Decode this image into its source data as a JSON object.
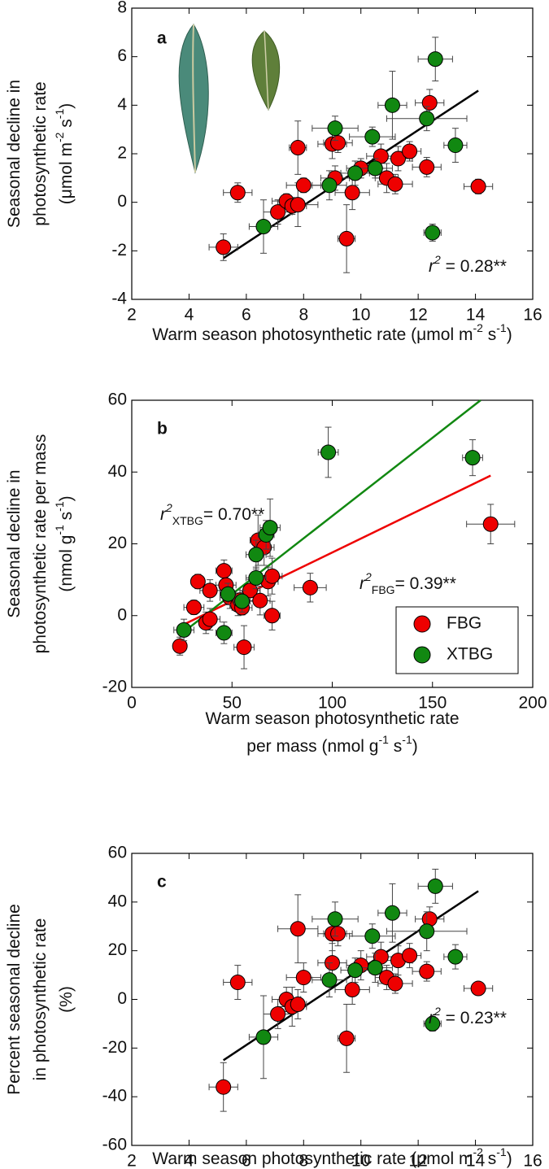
{
  "chart_data": [
    {
      "type": "scatter",
      "panel_label": "a",
      "x_label": [
        [
          {
            "text": "Warm season photosynthetic rate ("
          },
          {
            "text": "μ"
          },
          {
            "text": "mol m"
          },
          {
            "text": "-2",
            "sup": true
          },
          {
            "text": " s"
          },
          {
            "text": "-1",
            "sup": true
          },
          {
            "text": ")"
          }
        ]
      ],
      "y_label": [
        [
          {
            "text": "Seasonal decline in"
          }
        ],
        [
          {
            "text": "photosynthetic rate"
          }
        ],
        [
          {
            "text": "(μmol m"
          },
          {
            "text": "-2",
            "sup": true
          },
          {
            "text": " s"
          },
          {
            "text": "-1",
            "sup": true
          },
          {
            "text": ")"
          }
        ]
      ],
      "xlim": [
        2,
        16
      ],
      "xticks": [
        2,
        4,
        6,
        8,
        10,
        12,
        14,
        16
      ],
      "ylim": [
        -4,
        8
      ],
      "yticks": [
        -4,
        -2,
        0,
        2,
        4,
        6,
        8
      ],
      "series": [
        {
          "color": "#ee0000",
          "x": [
            5.2,
            5.7,
            7.1,
            7.4,
            7.6,
            7.8,
            7.8,
            8.0,
            9.0,
            9.1,
            9.2,
            9.5,
            9.7,
            10.0,
            10.7,
            10.9,
            11.2,
            11.3,
            11.7,
            12.3,
            12.4,
            14.1
          ],
          "values": [
            -1.85,
            0.4,
            -0.4,
            0.05,
            -0.15,
            -0.1,
            2.25,
            0.7,
            2.4,
            1.0,
            2.45,
            -1.5,
            0.4,
            1.4,
            1.9,
            1.0,
            0.75,
            1.8,
            2.1,
            1.45,
            4.1,
            0.65
          ],
          "yerr": [
            0.55,
            0.4,
            0.5,
            0.3,
            0.35,
            0.9,
            1.1,
            0.3,
            0.6,
            0.5,
            0.4,
            1.4,
            0.7,
            0.4,
            0.5,
            0.6,
            0.4,
            0.5,
            0.4,
            0.4,
            0.55,
            0.3
          ],
          "xerr": [
            0.5,
            0.5,
            0.5,
            0.5,
            0.5,
            0.7,
            0.3,
            0.6,
            0.5,
            0.5,
            0.5,
            0.3,
            0.6,
            0.5,
            0.5,
            0.4,
            0.6,
            0.5,
            0.4,
            0.5,
            0.5,
            0.5
          ]
        },
        {
          "color": "#118811",
          "x": [
            6.6,
            8.9,
            9.1,
            9.8,
            10.4,
            10.5,
            11.1,
            12.3,
            12.6,
            12.5,
            13.3
          ],
          "values": [
            -1.0,
            0.7,
            3.05,
            1.2,
            2.7,
            1.4,
            4.0,
            3.45,
            5.9,
            -1.25,
            2.35
          ],
          "yerr": [
            1.1,
            0.6,
            0.5,
            0.5,
            0.4,
            0.4,
            1.4,
            0.5,
            0.9,
            0.35,
            0.7
          ],
          "xerr": [
            0.5,
            0.6,
            0.8,
            0.5,
            0.8,
            0.6,
            0.5,
            1.4,
            0.6,
            0.3,
            0.4
          ]
        }
      ],
      "trend_lines": [
        {
          "color": "#000000",
          "x": [
            5.2,
            14.1
          ],
          "y": [
            -2.3,
            4.6
          ]
        }
      ],
      "annotations": [
        [
          {
            "text": "r",
            "italic": true
          },
          {
            "text": "2",
            "sup": true,
            "italic": true
          },
          {
            "text": " = 0.28**"
          }
        ]
      ]
    },
    {
      "type": "scatter",
      "panel_label": "b",
      "x_label": [
        [
          {
            "text": "Warm season photosynthetic rate"
          }
        ],
        [
          {
            "text": "per mass (nmol g"
          },
          {
            "text": "-1",
            "sup": true
          },
          {
            "text": " s"
          },
          {
            "text": "-1",
            "sup": true
          },
          {
            "text": ")"
          }
        ]
      ],
      "y_label": [
        [
          {
            "text": "Seasonal decline in"
          }
        ],
        [
          {
            "text": "photosynthetic rate per mass"
          }
        ],
        [
          {
            "text": "(nmol g"
          },
          {
            "text": "-1",
            "sup": true
          },
          {
            "text": " s"
          },
          {
            "text": "-1",
            "sup": true
          },
          {
            "text": ")"
          }
        ]
      ],
      "xlim": [
        0,
        200
      ],
      "xticks": [
        0,
        50,
        100,
        150,
        200
      ],
      "ylim": [
        -20,
        60
      ],
      "yticks": [
        -20,
        0,
        20,
        40,
        60
      ],
      "legend": "lower right",
      "series": [
        {
          "name": "FBG",
          "color": "#ee0000",
          "x": [
            24,
            33,
            31,
            37,
            39,
            39,
            46,
            47,
            49,
            53,
            54,
            55,
            56,
            59,
            63,
            64,
            66,
            68,
            70,
            70,
            89,
            179
          ],
          "values": [
            -8.5,
            9.5,
            2.3,
            -2,
            -1,
            7,
            12.5,
            8.5,
            5,
            3,
            4.3,
            2.2,
            -8.8,
            7,
            21,
            4.2,
            19,
            9.5,
            11,
            0,
            7.8,
            25.5
          ],
          "yerr": [
            2.5,
            2,
            2,
            3,
            3,
            3,
            3,
            3,
            3,
            3,
            2,
            2,
            6,
            3,
            7,
            4,
            5,
            4,
            5,
            4,
            4,
            5.5
          ],
          "xerr": [
            3,
            3,
            5,
            3,
            5,
            5,
            4,
            5,
            5,
            4,
            5,
            5,
            5,
            5,
            4,
            5,
            5,
            5,
            5,
            4,
            8,
            12
          ]
        },
        {
          "name": "XTBG",
          "color": "#118811",
          "x": [
            26,
            46,
            48,
            55,
            62,
            62,
            67,
            69,
            98,
            170
          ],
          "values": [
            -4,
            -4.8,
            6,
            4,
            10.5,
            17,
            22.5,
            24.5,
            45.5,
            44
          ],
          "yerr": [
            3,
            3,
            3,
            3,
            3,
            4,
            4,
            8,
            7,
            5
          ],
          "xerr": [
            5,
            4,
            4,
            4,
            5,
            5,
            4,
            5,
            5,
            5
          ]
        }
      ],
      "trend_lines": [
        {
          "color": "#ee0000",
          "x": [
            24,
            179
          ],
          "y": [
            -3,
            39
          ]
        },
        {
          "color": "#118811",
          "x": [
            26,
            174
          ],
          "y": [
            -4.5,
            60
          ]
        }
      ],
      "annotations": [
        [
          {
            "text": "r",
            "italic": true
          },
          {
            "text": "2",
            "sup": true,
            "italic": true
          },
          {
            "text": "XTBG",
            "sub": true
          },
          {
            "text": "=  0.70**"
          }
        ],
        [
          {
            "text": "r",
            "italic": true
          },
          {
            "text": "2",
            "sup": true,
            "italic": true
          },
          {
            "text": "FBG",
            "sub": true
          },
          {
            "text": "=  0.39**"
          }
        ]
      ]
    },
    {
      "type": "scatter",
      "panel_label": "c",
      "x_label": [
        [
          {
            "text": "Warm season photosynthetic rate ("
          },
          {
            "text": "μ"
          },
          {
            "text": "mol m"
          },
          {
            "text": "-2",
            "sup": true
          },
          {
            "text": " s"
          },
          {
            "text": "-1",
            "sup": true
          },
          {
            "text": ")"
          }
        ]
      ],
      "y_label": [
        [
          {
            "text": "Percent seasonal decline"
          }
        ],
        [
          {
            "text": "in photosynthetic rate"
          }
        ],
        [
          {
            "text": "(%)"
          }
        ]
      ],
      "xlim": [
        2,
        16
      ],
      "xticks": [
        2,
        4,
        6,
        8,
        10,
        12,
        14,
        16
      ],
      "ylim": [
        -60,
        60
      ],
      "yticks": [
        -60,
        -40,
        -20,
        0,
        20,
        40,
        60
      ],
      "series": [
        {
          "color": "#ee0000",
          "x": [
            5.2,
            5.7,
            7.1,
            7.4,
            7.6,
            7.8,
            7.8,
            8.0,
            9.0,
            9.0,
            9.2,
            9.5,
            9.7,
            10.0,
            10.7,
            10.9,
            11.2,
            11.3,
            11.7,
            12.3,
            12.4,
            14.1
          ],
          "values": [
            -36,
            7,
            -6,
            0,
            -3,
            29,
            -2,
            9,
            15,
            27,
            27,
            -16,
            4,
            14,
            17.5,
            9,
            6.5,
            16,
            18,
            11.5,
            33,
            4.5
          ],
          "yerr": [
            10,
            7,
            6,
            5,
            8,
            14,
            6,
            6,
            8,
            7,
            5,
            14,
            6,
            6,
            6,
            5,
            4,
            6,
            5,
            4,
            5,
            2
          ],
          "xerr": [
            0.5,
            0.5,
            0.5,
            0.5,
            0.5,
            0.7,
            0.3,
            0.6,
            0.5,
            0.5,
            0.5,
            0.3,
            0.6,
            0.5,
            0.5,
            0.4,
            0.6,
            0.5,
            0.4,
            0.5,
            0.5,
            0.5
          ]
        },
        {
          "color": "#118811",
          "x": [
            6.6,
            8.9,
            9.1,
            9.8,
            10.4,
            10.5,
            11.1,
            12.3,
            12.6,
            12.5,
            13.3
          ],
          "values": [
            -15.5,
            8,
            33,
            12,
            26,
            13,
            35.5,
            28,
            46.5,
            -10,
            17.5
          ],
          "yerr": [
            17,
            7,
            7,
            5,
            5,
            6,
            12,
            8,
            7,
            3,
            5
          ],
          "xerr": [
            0.5,
            0.6,
            0.8,
            0.5,
            0.8,
            0.6,
            0.5,
            1.4,
            0.6,
            0.3,
            0.4
          ]
        }
      ],
      "trend_lines": [
        {
          "color": "#000000",
          "x": [
            5.2,
            14.1
          ],
          "y": [
            -25,
            44.5
          ]
        }
      ],
      "annotations": [
        [
          {
            "text": "r",
            "italic": true
          },
          {
            "text": "2",
            "sup": true,
            "italic": true
          },
          {
            "text": " = 0.23**"
          }
        ]
      ]
    }
  ]
}
